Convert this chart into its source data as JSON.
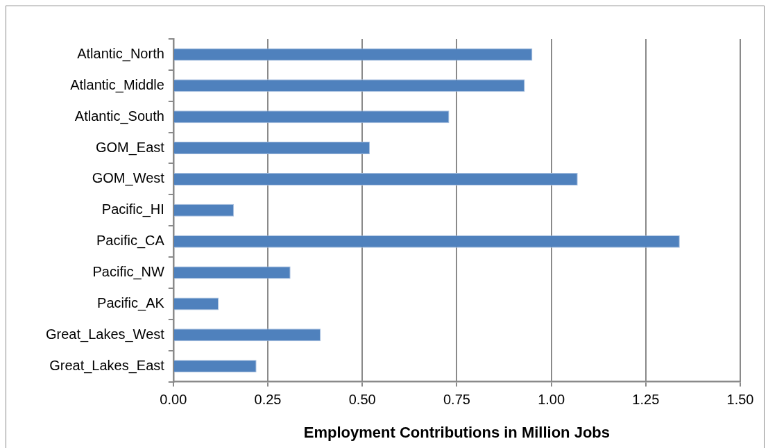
{
  "chart_data": {
    "type": "bar",
    "orientation": "horizontal",
    "xlabel": "Employment Contributions in Million Jobs",
    "categories": [
      "Atlantic_North",
      "Atlantic_Middle",
      "Atlantic_South",
      "GOM_East",
      "GOM_West",
      "Pacific_HI",
      "Pacific_CA",
      "Pacific_NW",
      "Pacific_AK",
      "Great_Lakes_West",
      "Great_Lakes_East"
    ],
    "values": [
      0.95,
      0.93,
      0.73,
      0.52,
      1.07,
      0.16,
      1.34,
      0.31,
      0.12,
      0.39,
      0.22
    ],
    "color": "#4f81bd",
    "xlim": [
      0,
      1.5
    ],
    "xticks": [
      {
        "value": 0,
        "label": "0.00"
      },
      {
        "value": 0.25,
        "label": "0.25"
      },
      {
        "value": 0.5,
        "label": "0.50"
      },
      {
        "value": 0.75,
        "label": "0.75"
      },
      {
        "value": 1,
        "label": "1.00"
      },
      {
        "value": 1.25,
        "label": "1.25"
      },
      {
        "value": 1.5,
        "label": "1.50"
      }
    ],
    "grid": "x",
    "legend": false
  }
}
